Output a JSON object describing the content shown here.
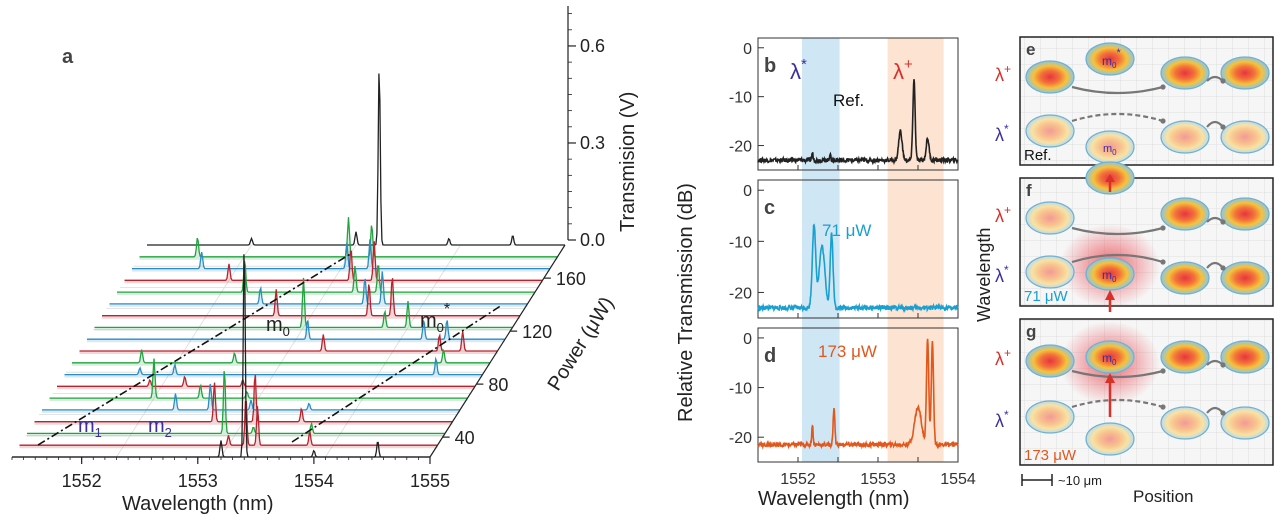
{
  "colors": {
    "black": "#222222",
    "red": "#b8232d",
    "blue": "#2a8dc4",
    "green": "#23a340",
    "cyan": "#1aa0d0",
    "orange": "#e2571c",
    "blueBand": "#cfe6f4",
    "orangeBand": "#fde3d2",
    "lambdaRed": "#d9302a",
    "lambdaBlue": "#3b2f9e"
  },
  "chart_data": [
    {
      "panel": "a",
      "type": "line",
      "label": "a",
      "xlabel": "Wavelength (nm)",
      "xticks": [
        "1552",
        "1553",
        "1554",
        "1555"
      ],
      "xlim": [
        1551.4,
        1555.0
      ],
      "zlabel": "Transmision (V)",
      "zticks": [
        "0.0",
        "0.3",
        "0.6"
      ],
      "ylabel": "Power (μW)",
      "yticks": [
        "40",
        "80",
        "120",
        "160"
      ],
      "mode_labels": {
        "m0": "m",
        "m0_sub": "0",
        "m0star": "m",
        "m0star_sub": "0",
        "m0star_sup": "*",
        "m1": "m",
        "m1_sub": "1",
        "m2": "m",
        "m2_sub": "2"
      },
      "traces": [
        {
          "color": "black",
          "peaks": [
            [
              1553.2,
              0.05
            ],
            [
              1553.4,
              0.65
            ],
            [
              1554.0,
              0.02
            ],
            [
              1554.55,
              0.05
            ]
          ]
        },
        {
          "color": "red",
          "peaks": [
            [
              1553.2,
              0.03
            ],
            [
              1553.35,
              0.15
            ],
            [
              1553.45,
              0.12
            ],
            [
              1553.9,
              0.04
            ]
          ]
        },
        {
          "color": "green",
          "peaks": [
            [
              1553.1,
              0.2
            ],
            [
              1553.35,
              0.02
            ],
            [
              1553.85,
              0.03
            ]
          ]
        },
        {
          "color": "red",
          "peaks": [
            [
              1552.95,
              0.12
            ],
            [
              1553.3,
              0.15
            ],
            [
              1553.7,
              0.04
            ]
          ]
        },
        {
          "color": "blue",
          "peaks": [
            [
              1552.55,
              0.05
            ],
            [
              1552.85,
              0.08
            ],
            [
              1553.2,
              0.03
            ],
            [
              1553.7,
              0.02
            ]
          ]
        },
        {
          "color": "green",
          "peaks": [
            [
              1552.3,
              0.12
            ],
            [
              1552.7,
              0.04
            ],
            [
              1553.1,
              0.02
            ]
          ]
        },
        {
          "color": "red",
          "peaks": [
            [
              1552.2,
              0.02
            ],
            [
              1552.5,
              0.03
            ],
            [
              1553.0,
              0.02
            ]
          ]
        },
        {
          "color": "blue",
          "peaks": [
            [
              1552.05,
              0.02
            ],
            [
              1552.35,
              0.03
            ],
            [
              1554.6,
              0.05
            ]
          ]
        },
        {
          "color": "green",
          "peaks": [
            [
              1552.0,
              0.04
            ],
            [
              1552.8,
              0.03
            ],
            [
              1554.6,
              0.04
            ]
          ]
        },
        {
          "color": "red",
          "peaks": [
            [
              1553.5,
              0.05
            ],
            [
              1554.5,
              0.05
            ],
            [
              1554.7,
              0.06
            ]
          ]
        },
        {
          "color": "blue",
          "peaks": [
            [
              1553.3,
              0.06
            ],
            [
              1554.3,
              0.06
            ],
            [
              1554.5,
              0.06
            ]
          ]
        },
        {
          "color": "green",
          "peaks": [
            [
              1553.2,
              0.15
            ],
            [
              1553.9,
              0.05
            ],
            [
              1554.1,
              0.08
            ]
          ]
        },
        {
          "color": "red",
          "peaks": [
            [
              1552.9,
              0.08
            ],
            [
              1553.7,
              0.1
            ],
            [
              1553.9,
              0.12
            ]
          ]
        },
        {
          "color": "blue",
          "peaks": [
            [
              1552.7,
              0.05
            ],
            [
              1553.6,
              0.08
            ],
            [
              1553.75,
              0.1
            ]
          ]
        },
        {
          "color": "green",
          "peaks": [
            [
              1552.5,
              0.1
            ],
            [
              1553.45,
              0.08
            ],
            [
              1553.65,
              0.09
            ]
          ]
        },
        {
          "color": "red",
          "peaks": [
            [
              1552.3,
              0.05
            ],
            [
              1553.35,
              0.1
            ],
            [
              1553.55,
              0.12
            ]
          ]
        },
        {
          "color": "blue",
          "peaks": [
            [
              1552.0,
              0.05
            ],
            [
              1553.25,
              0.08
            ],
            [
              1553.45,
              0.09
            ]
          ]
        },
        {
          "color": "green",
          "peaks": [
            [
              1551.9,
              0.06
            ],
            [
              1553.2,
              0.12
            ],
            [
              1553.4,
              0.1
            ]
          ]
        },
        {
          "color": "black",
          "peaks": [
            [
              1552.3,
              0.02
            ],
            [
              1553.2,
              0.04
            ],
            [
              1553.4,
              0.55
            ],
            [
              1554.0,
              0.02
            ],
            [
              1554.55,
              0.03
            ]
          ]
        }
      ]
    },
    {
      "panel": "b",
      "type": "line",
      "label": "b",
      "ylabel": "Relative Transmission (dB)",
      "annotation": "Ref.",
      "lambda_star": "λ",
      "lambda_star_sup": "*",
      "lambda_plus": "λ",
      "lambda_plus_sup": "+",
      "yticks": [
        "0",
        "-10",
        "-20"
      ],
      "ylim": [
        -25,
        2
      ],
      "xlim": [
        1551.5,
        1554.0
      ],
      "blue_band": [
        1552.05,
        1552.52
      ],
      "orange_band": [
        1553.12,
        1553.82
      ],
      "baseline": -23,
      "peaks": [
        [
          1552.18,
          -21.5,
          0.012
        ],
        [
          1552.4,
          -21.8,
          0.012
        ],
        [
          1553.28,
          -17.0,
          0.03
        ],
        [
          1553.45,
          -6.5,
          0.02
        ],
        [
          1553.62,
          -18.5,
          0.025
        ]
      ],
      "color": "black"
    },
    {
      "panel": "c",
      "type": "line",
      "label": "c",
      "annotation": "71 μW",
      "yticks": [
        "0",
        "-10",
        "-20"
      ],
      "ylim": [
        -25,
        2
      ],
      "xlim": [
        1551.5,
        1554.0
      ],
      "blue_band": [
        1552.05,
        1552.52
      ],
      "orange_band": [
        1553.12,
        1553.82
      ],
      "baseline": -23,
      "peaks": [
        [
          1552.2,
          -7,
          0.03
        ],
        [
          1552.3,
          -11,
          0.05
        ],
        [
          1552.42,
          -8.5,
          0.025
        ]
      ],
      "color": "cyan"
    },
    {
      "panel": "d",
      "type": "line",
      "label": "d",
      "annotation": "173 μW",
      "xlabel": "Wavelength (nm)",
      "xticks": [
        "1552",
        "1553",
        "1554"
      ],
      "yticks": [
        "0",
        "-10",
        "-20"
      ],
      "ylim": [
        -25,
        2
      ],
      "xlim": [
        1551.5,
        1554.0
      ],
      "blue_band": [
        1552.05,
        1552.52
      ],
      "orange_band": [
        1553.12,
        1553.82
      ],
      "baseline": -21.5,
      "peaks": [
        [
          1552.18,
          -17.5,
          0.012
        ],
        [
          1552.45,
          -14,
          0.015
        ],
        [
          1553.5,
          -14,
          0.06
        ],
        [
          1553.62,
          0,
          0.02
        ],
        [
          1553.68,
          -1,
          0.02
        ]
      ],
      "color": "orange"
    }
  ],
  "schematic": {
    "ylabel": "Wavelength",
    "xlabel": "Position",
    "scalebar": "~10 μm",
    "panels": [
      {
        "label": "e",
        "row_top": "λ",
        "row_top_sup": "+",
        "row_bottom": "λ",
        "row_bottom_sup": "*",
        "note": "Ref.",
        "mode": "m",
        "mode_sub": "0",
        "mode_sup": "*"
      },
      {
        "label": "f",
        "row_top": "λ",
        "row_top_sup": "+",
        "row_bottom": "λ",
        "row_bottom_sup": "*",
        "note": "71 μW",
        "mode": "m",
        "mode_sub": "0"
      },
      {
        "label": "g",
        "row_top": "λ",
        "row_top_sup": "+",
        "row_bottom": "λ",
        "row_bottom_sup": "*",
        "note": "173 μW",
        "mode": "m",
        "mode_sub": "0"
      }
    ]
  }
}
